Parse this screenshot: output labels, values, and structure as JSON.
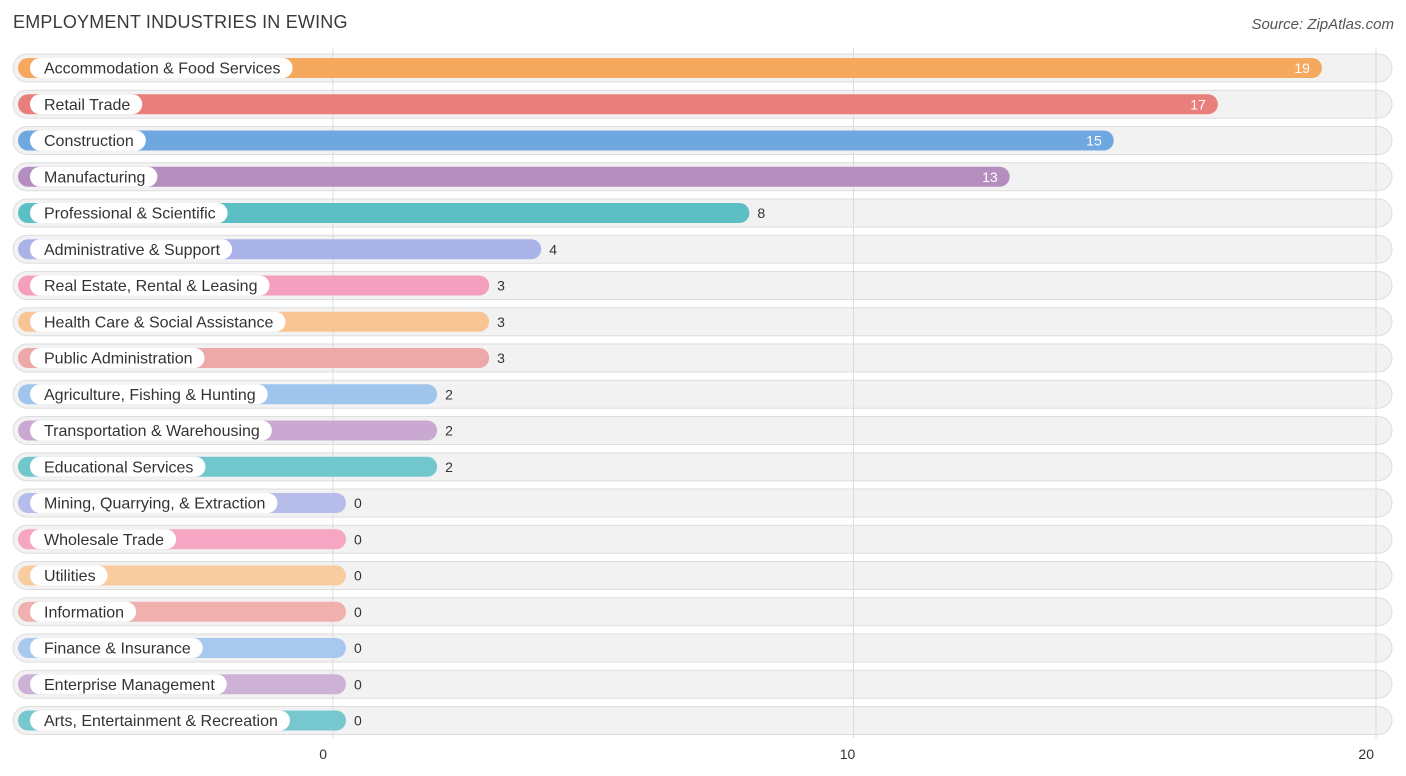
{
  "header": {
    "title": "EMPLOYMENT INDUSTRIES IN EWING",
    "source": "Source: ZipAtlas.com"
  },
  "chart_data": {
    "type": "bar",
    "orientation": "horizontal",
    "title": "EMPLOYMENT INDUSTRIES IN EWING",
    "xlabel": "",
    "ylabel": "",
    "xlim": [
      0,
      20
    ],
    "x_ticks": [
      0,
      10,
      20
    ],
    "grid": true,
    "categories": [
      "Accommodation & Food Services",
      "Retail Trade",
      "Construction",
      "Manufacturing",
      "Professional & Scientific",
      "Administrative & Support",
      "Real Estate, Rental & Leasing",
      "Health Care & Social Assistance",
      "Public Administration",
      "Agriculture, Fishing & Hunting",
      "Transportation & Warehousing",
      "Educational Services",
      "Mining, Quarrying, & Extraction",
      "Wholesale Trade",
      "Utilities",
      "Information",
      "Finance & Insurance",
      "Enterprise Management",
      "Arts, Entertainment & Recreation"
    ],
    "values": [
      19,
      17,
      15,
      13,
      8,
      4,
      3,
      3,
      3,
      2,
      2,
      2,
      0,
      0,
      0,
      0,
      0,
      0,
      0
    ],
    "value_labels": [
      "19",
      "17",
      "15",
      "13",
      "8",
      "4",
      "3",
      "3",
      "3",
      "2",
      "2",
      "2",
      "0",
      "0",
      "0",
      "0",
      "0",
      "0",
      "0"
    ],
    "colors": [
      "#f5a95f",
      "#e97f7b",
      "#6fa8e0",
      "#b58ec0",
      "#5bbfc4",
      "#aab3e8",
      "#f59fbf",
      "#f8c493",
      "#eda8a8",
      "#9fc5ec",
      "#c9a9d2",
      "#72c7cc",
      "#b7bdea",
      "#f6a5c2",
      "#f9cc9f",
      "#f0b0ae",
      "#a9c8ee",
      "#cdb2d6",
      "#77c8ce"
    ]
  }
}
